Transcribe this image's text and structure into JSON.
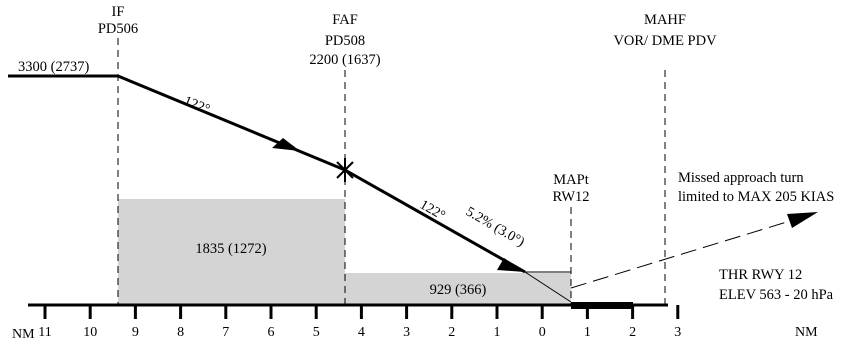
{
  "fixes": {
    "if": {
      "title": "IF",
      "name": "PD506"
    },
    "faf": {
      "title": "FAF",
      "name": "PD508",
      "altitude": "2200 (1637)"
    },
    "mapt": {
      "title": "MAPt",
      "name": "RW12"
    },
    "mahf": {
      "title": "MAHF",
      "name": "VOR/ DME PDV"
    }
  },
  "initial_altitude": "3300 (2737)",
  "track_labels": {
    "intermediate": "122°",
    "final": "122°"
  },
  "descent_gradient": "5.2% (3.0°)",
  "obstacle_clearance": {
    "intermediate": "1835 (1272)",
    "final": "929 (366)"
  },
  "missed_approach_note": {
    "line1": "Missed approach turn",
    "line2": "limited to MAX 205 KIAS"
  },
  "threshold": {
    "line1": "THR RWY 12",
    "line2": "ELEV 563 - 20 hPa"
  },
  "distance_scale": {
    "unit": "NM",
    "ticks": [
      "11",
      "10",
      "9",
      "8",
      "7",
      "6",
      "5",
      "4",
      "3",
      "2",
      "1",
      "0",
      "1",
      "2",
      "3"
    ]
  },
  "colors": {
    "line": "#000000",
    "oca_fill": "#d4d4d4"
  }
}
